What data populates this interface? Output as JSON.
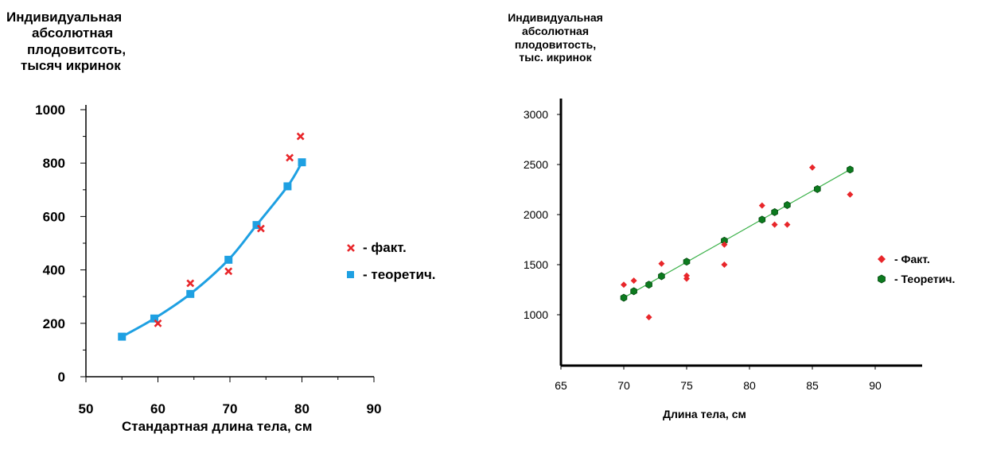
{
  "chart_data": [
    {
      "type": "scatter",
      "ylabel_lines": [
        "Индивидуальная",
        "абсолютная",
        "плодовитсоть,",
        "тысяч икринок"
      ],
      "xlabel": "Стандартная длина тела, см",
      "xlim": [
        50,
        90
      ],
      "ylim": [
        0,
        1000
      ],
      "x_ticks": [
        "50",
        "60",
        "70",
        "80",
        "90"
      ],
      "y_ticks": [
        "0",
        "200",
        "400",
        "600",
        "800",
        "1000"
      ],
      "legend_position": "right",
      "series": [
        {
          "name": "- факт.",
          "marker": "x",
          "color": "#e8262a",
          "x": [
            60,
            64.5,
            69.8,
            74.3,
            78.3,
            79.8
          ],
          "y": [
            200,
            350,
            395,
            555,
            820,
            900
          ]
        },
        {
          "name": "- теоретич.",
          "marker": "square",
          "color": "#1ea0e2",
          "curve": true,
          "x": [
            55,
            59.5,
            64.5,
            69.8,
            73.7,
            78,
            80
          ],
          "y": [
            150,
            218,
            310,
            438,
            568,
            713,
            803
          ]
        }
      ]
    },
    {
      "type": "scatter",
      "ylabel_lines": [
        "Индивидуальная",
        "абсолютная",
        "плодовитость,",
        "тыс. икринок"
      ],
      "xlabel": "Длина тела, см",
      "xlim": [
        65,
        90
      ],
      "ylim": [
        500,
        3000
      ],
      "x_ticks": [
        "65",
        "70",
        "75",
        "80",
        "85",
        "90"
      ],
      "y_ticks": [
        "1000",
        "1500",
        "2000",
        "2500",
        "3000"
      ],
      "legend_position": "right",
      "series": [
        {
          "name": "- Факт.",
          "marker": "diamond",
          "color": "#e8262a",
          "x": [
            70,
            70.8,
            72,
            73,
            75,
            75,
            78,
            78,
            81,
            82,
            83,
            85,
            88
          ],
          "y": [
            1300,
            1340,
            975,
            1510,
            1390,
            1360,
            1700,
            1500,
            2090,
            1900,
            1900,
            2470,
            2200
          ]
        },
        {
          "name": "- Теоретич.",
          "marker": "hexagon",
          "color": "#0c7a1e",
          "x": [
            70,
            70.8,
            72,
            73,
            75,
            78,
            81,
            82,
            83,
            85.4,
            88
          ],
          "y": [
            1170,
            1235,
            1300,
            1385,
            1530,
            1740,
            1950,
            2025,
            2095,
            2255,
            2450
          ]
        },
        {
          "name": "",
          "line": true,
          "color": "#3db24b",
          "x": [
            70,
            88
          ],
          "y": [
            1170,
            2450
          ]
        }
      ]
    }
  ]
}
